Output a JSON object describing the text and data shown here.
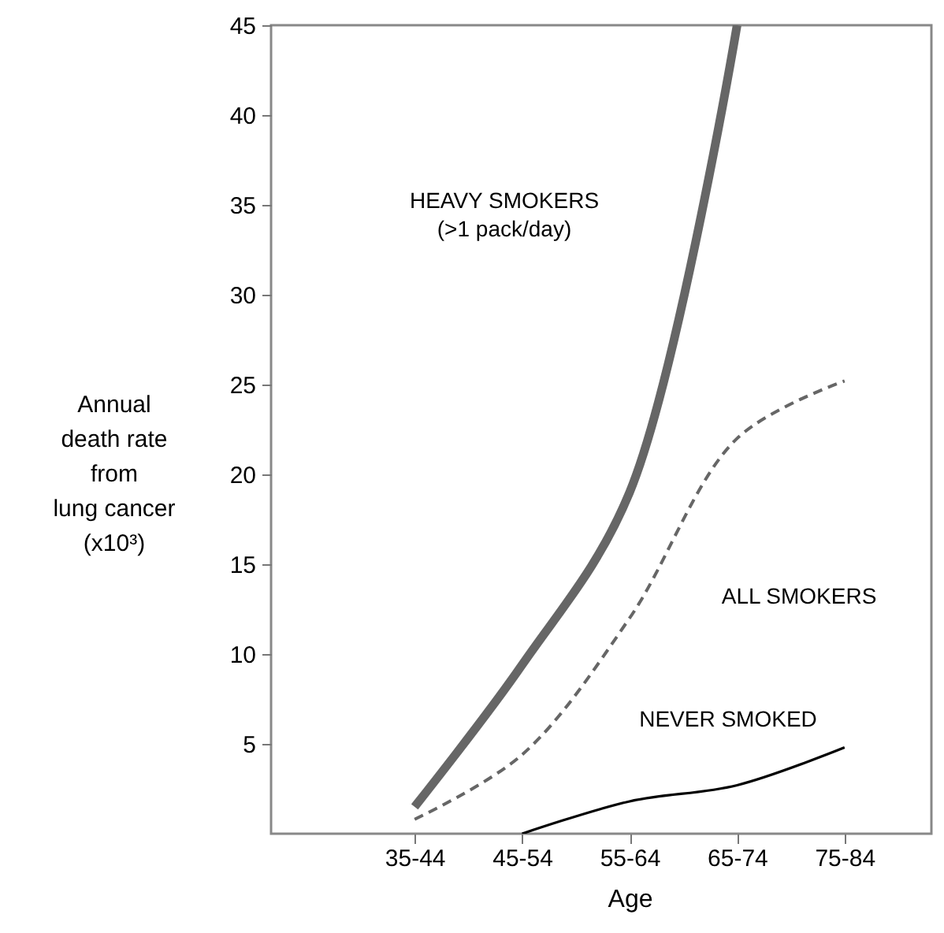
{
  "chart_data": {
    "type": "line",
    "xlabel": "Age",
    "ylabel": "Annual\ndeath rate\nfrom\nlung cancer\n(x10³)",
    "categories": [
      "35-44",
      "45-54",
      "55-64",
      "65-74",
      "75-84"
    ],
    "series": [
      {
        "color": "#666666",
        "values": [
          1.5,
          9.4,
          19,
          45,
          null
        ],
        "line_style": "solid"
      },
      {
        "color": "#666666",
        "values": [
          0.8,
          4.4,
          12,
          22,
          25.2
        ],
        "line_style": "dashed"
      },
      {
        "color": "#000000",
        "values": [
          null,
          0,
          1.8,
          2.7,
          4.8
        ],
        "line_style": "solid"
      }
    ],
    "ylim": [
      0,
      45
    ],
    "yticks": [
      5,
      10,
      15,
      20,
      25,
      30,
      35,
      40,
      45
    ],
    "grid": false,
    "annotations": [
      "HEAVY SMOKERS\n(>1 pack/day)",
      "ALL SMOKERS",
      "NEVER SMOKED"
    ]
  }
}
